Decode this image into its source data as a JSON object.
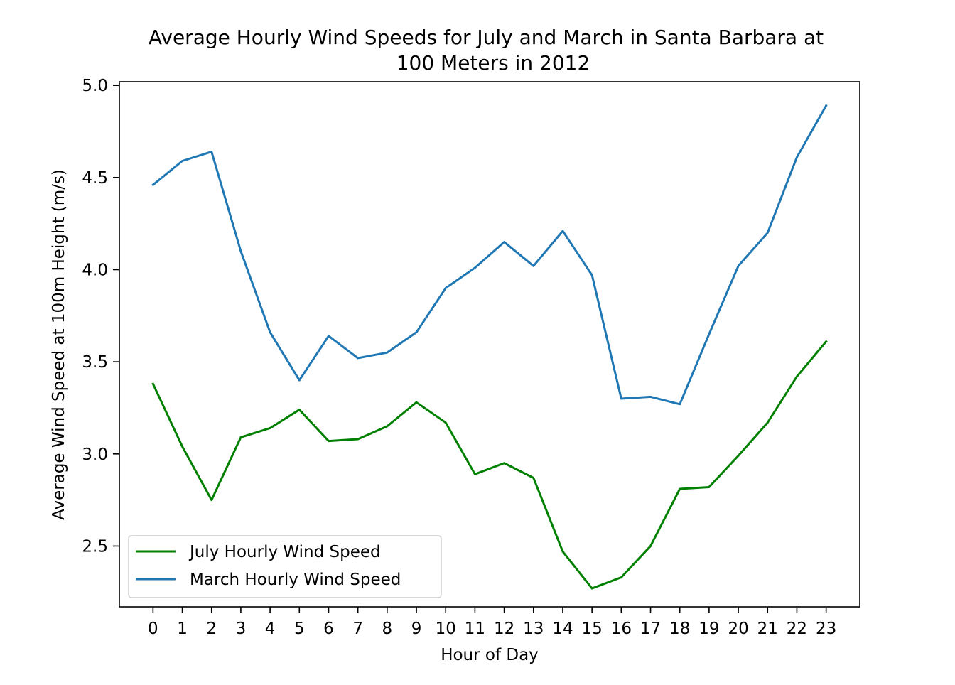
{
  "chart_data": {
    "type": "line",
    "title_lines": [
      "Average Hourly Wind Speeds for July and March in Santa Barbara at",
      "100 Meters in 2012"
    ],
    "xlabel": "Hour of Day",
    "ylabel": "Average Wind Speed at 100m Height (m/s)",
    "x": [
      0,
      1,
      2,
      3,
      4,
      5,
      6,
      7,
      8,
      9,
      10,
      11,
      12,
      13,
      14,
      15,
      16,
      17,
      18,
      19,
      20,
      21,
      22,
      23
    ],
    "x_ticks": [
      "0",
      "1",
      "2",
      "3",
      "4",
      "5",
      "6",
      "7",
      "8",
      "9",
      "10",
      "11",
      "12",
      "13",
      "14",
      "15",
      "16",
      "17",
      "18",
      "19",
      "20",
      "21",
      "22",
      "23"
    ],
    "xlim": [
      -1.15,
      24.15
    ],
    "ylim": [
      2.17,
      5.02
    ],
    "y_ticks": [
      "2.5",
      "3.0",
      "3.5",
      "4.0",
      "4.5",
      "5.0"
    ],
    "y_tick_values": [
      2.5,
      3.0,
      3.5,
      4.0,
      4.5,
      5.0
    ],
    "grid": false,
    "legend_position": "lower-left",
    "series": [
      {
        "name": "July Hourly Wind Speed",
        "color": "#008000",
        "values": [
          3.38,
          3.04,
          2.75,
          3.09,
          3.14,
          3.24,
          3.07,
          3.08,
          3.15,
          3.28,
          3.17,
          2.89,
          2.95,
          2.87,
          2.47,
          2.27,
          2.33,
          2.5,
          2.81,
          2.82,
          2.99,
          3.17,
          3.42,
          3.61
        ]
      },
      {
        "name": "March Hourly Wind Speed",
        "color": "#1f77b4",
        "values": [
          4.46,
          4.59,
          4.64,
          4.1,
          3.66,
          3.4,
          3.64,
          3.52,
          3.55,
          3.66,
          3.9,
          4.01,
          4.15,
          4.02,
          4.21,
          3.97,
          3.3,
          3.31,
          3.27,
          3.65,
          4.02,
          4.2,
          4.61,
          4.89
        ]
      }
    ]
  }
}
